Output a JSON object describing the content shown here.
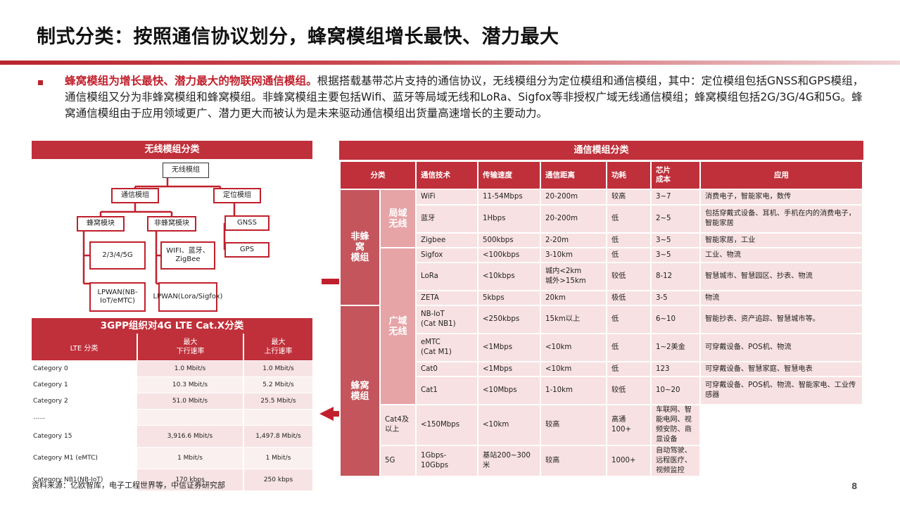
{
  "title": "制式分类：按照通信协议划分，蜂窝模组增长最快、潜力最大",
  "intro": {
    "highlight": "蜂窝模组为增长最快、潜力最大的物联网通信模组。",
    "text": "根据搭载基带芯片支持的通信协议，无线模组分为定位模组和通信模组，其中：定位模组包括GNSS和GPS模组，通信模组又分为非蜂窝模组和蜂窝模组。非蜂窝模组主要包括Wifi、蓝牙等局域无线和LoRa、Sigfox等非授权广域无线通信模组；蜂窝模组包括2G/3G/4G和5G。蜂窝通信模组由于应用领域更广、潜力更大而被认为是未来驱动通信模组出货量高速增长的主要动力。"
  },
  "tree": {
    "header": "无线模组分类",
    "root": "无线模组",
    "comm": "通信模组",
    "loc": "定位模组",
    "cellular": "蜂窝模块",
    "noncell": "非蜂窝模块",
    "gnss": "GNSS",
    "gps": "GPS",
    "g2345": "2/3/4/5G",
    "wifi": "WIFI、蓝牙、ZigBee",
    "lpwan1": "LPWAN(NB-IoT/eMTC)",
    "lpwan2": "LPWAN(Lora/Sigfox)"
  },
  "lte": {
    "header": "3GPP组织对4G LTE Cat.X分类",
    "col1": "LTE  分类",
    "col2": "最大\n下行速率",
    "col3": "最大\n上行速率",
    "rows": [
      {
        "cat": "Category 0",
        "down": "1.0 Mbit/s",
        "up": "1.0 Mbit/s"
      },
      {
        "cat": "Category 1",
        "down": "10.3 Mbit/s",
        "up": "5.2 Mbit/s"
      },
      {
        "cat": "Category 2",
        "down": "51.0 Mbit/s",
        "up": "25.5 Mbit/s"
      },
      {
        "cat": "......",
        "down": "",
        "up": ""
      },
      {
        "cat": "Category 15",
        "down": "3,916.6 Mbit/s",
        "up": "1,497.8 Mbit/s"
      },
      {
        "cat": "Category M1 (eMTC)",
        "down": "1 Mbit/s",
        "up": "1 Mbit/s"
      },
      {
        "cat": "Category NB1(NB-IoT)",
        "down": "170 kbps",
        "up": "250 kbps"
      }
    ]
  },
  "comm_table": {
    "header": "通信模组分类",
    "cols": [
      "分类",
      "通信技术",
      "传输速度",
      "通信距离",
      "功耗",
      "芯片\n成本",
      "应用"
    ],
    "cat_noncell": "非蜂\n窝\n模组",
    "cat_cell": "蜂窝\n模组",
    "sub_local": "局域\n无线",
    "sub_wide": "广域\n无线",
    "rows": [
      {
        "tech": "WiFi",
        "speed": "11-54Mbps",
        "dist": "20-200m",
        "power": "较高",
        "cost": "3~7",
        "app": "消费电子，智能家电，数传"
      },
      {
        "tech": "蓝牙",
        "speed": "1Hbps",
        "dist": "20-200m",
        "power": "低",
        "cost": "2~5",
        "app": "包括穿戴式设备、耳机、手机在内的消费电子，智能家居"
      },
      {
        "tech": "Zigbee",
        "speed": "500kbps",
        "dist": "2-20m",
        "power": "低",
        "cost": "3~5",
        "app": "智能家居，工业"
      },
      {
        "tech": "Sigfox",
        "speed": "<100kbps",
        "dist": "3-10km",
        "power": "低",
        "cost": "3~5",
        "app": "工业、物流"
      },
      {
        "tech": "LoRa",
        "speed": "<10kbps",
        "dist": "城内<2km\n城外>15km",
        "power": "较低",
        "cost": "8-12",
        "app": "智慧城市、智慧园区、抄表、物流"
      },
      {
        "tech": "ZETA",
        "speed": "5kbps",
        "dist": "20km",
        "power": "极低",
        "cost": "3-5",
        "app": "物流"
      },
      {
        "tech": "NB-IoT\n(Cat NB1)",
        "speed": "<250kbps",
        "dist": "15km以上",
        "power": "低",
        "cost": "6~10",
        "app": "智能抄表、资产追踪、智慧城市等。"
      },
      {
        "tech": "eMTC\n(Cat M1)",
        "speed": "<1Mbps",
        "dist": "<10km",
        "power": "低",
        "cost": "1~2美金",
        "app": "可穿戴设备、POS机、物流"
      },
      {
        "tech": "Cat0",
        "speed": "<1Mbps",
        "dist": "<10km",
        "power": "低",
        "cost": "123",
        "app": "可穿戴设备、智慧家庭、智慧电表"
      },
      {
        "tech": "Cat1",
        "speed": "<10Mbps",
        "dist": "1-10km",
        "power": "较低",
        "cost": "10~20",
        "app": "可穿戴设备、POS机、物流、智能家电、工业传感器"
      },
      {
        "tech": "Cat4及以上",
        "speed": "<150Mbps",
        "dist": "<10km",
        "power": "较高",
        "cost": "高通\n100+",
        "app": "车联网、智能电网、视频安防、商显设备"
      },
      {
        "tech": "5G",
        "speed": "1Gbps-\n10Gbps",
        "dist": "基站200~300米",
        "power": "较高",
        "cost": "1000+",
        "app": "自动驾驶、远程医疗、视频监控"
      }
    ]
  },
  "source": "资料来源：亿欧智库，电子工程世界等，中信证券研究部",
  "page_number": "8",
  "colors": {
    "accent": "#c0303a",
    "light": "#f8e1e2",
    "mid": "#e6a4a7",
    "dark": "#c4555c"
  }
}
